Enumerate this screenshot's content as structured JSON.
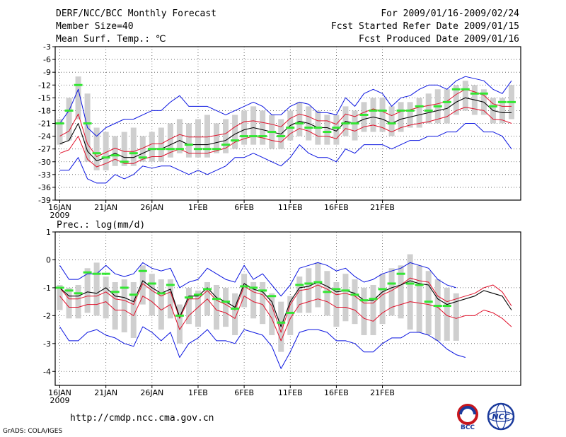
{
  "header": {
    "title": "DERF/NCC/BCC Monthly Forecast",
    "member_size": "Member Size=40",
    "variable": "Mean Surf. Temp.: ℃",
    "period": "For 2009/01/16-2009/02/24",
    "started": "Fcst Started Refer Date 2009/01/15",
    "produced": "Fcst Produced Date 2009/01/16"
  },
  "footer": {
    "url": "http://cmdp.ncc.cma.gov.cn",
    "grads": "GrADS: COLA/IGES",
    "logo_bcc": "BCC",
    "logo_ncc": "NCC"
  },
  "colors": {
    "mean": "#000000",
    "spread": "#e0102a",
    "extreme": "#0a14e0",
    "obs": "#33e633",
    "box": "#cfcfcf"
  },
  "chart_data": [
    {
      "type": "line",
      "title": "Mean Surf. Temp.: ℃",
      "x_ticks": [
        "16JAN",
        "21JAN",
        "26JAN",
        "1FEB",
        "6FEB",
        "11FEB",
        "16FEB",
        "21FEB"
      ],
      "x_sub": "2009",
      "ylim": [
        -39,
        -3
      ],
      "y_ticks": [
        -3,
        -6,
        -9,
        -12,
        -15,
        -18,
        -21,
        -24,
        -27,
        -30,
        -33,
        -36,
        -39
      ],
      "mean": [
        -25.8,
        -25,
        -21,
        -27.5,
        -29.8,
        -29,
        -28,
        -29,
        -29,
        -28,
        -27,
        -27,
        -26,
        -25,
        -26,
        -26,
        -26,
        -25.5,
        -25,
        -23.5,
        -22.5,
        -22,
        -22.5,
        -23,
        -23.5,
        -21.5,
        -20.5,
        -21,
        -22,
        -22,
        -22.8,
        -20.5,
        -21,
        -20,
        -19.5,
        -20,
        -21,
        -20,
        -19.5,
        -19,
        -18.5,
        -18,
        -17.5,
        -16,
        -15,
        -15.5,
        -16,
        -18,
        -18.5,
        -18.5
      ],
      "upper": [
        -24,
        -22.8,
        -18.8,
        -25.8,
        -28.8,
        -27.8,
        -26.8,
        -27.6,
        -27.6,
        -26.8,
        -25.8,
        -25.8,
        -24.6,
        -23.6,
        -24.2,
        -24.2,
        -24.2,
        -23.8,
        -23.4,
        -21.8,
        -20.6,
        -20.4,
        -20.8,
        -21.2,
        -21.8,
        -19.8,
        -18.8,
        -19.4,
        -20.4,
        -20.4,
        -21.2,
        -18.8,
        -19.4,
        -18.4,
        -17.6,
        -18.2,
        -19.2,
        -18.2,
        -17.8,
        -17.2,
        -16.8,
        -16.4,
        -15.8,
        -14.2,
        -13,
        -13.6,
        -14.4,
        -16.4,
        -17,
        -17
      ],
      "lower": [
        -28,
        -27.2,
        -24,
        -29.4,
        -31.2,
        -30.4,
        -29.4,
        -30.4,
        -30.4,
        -29.4,
        -28.8,
        -28.8,
        -27.8,
        -27,
        -28,
        -28,
        -28,
        -27.4,
        -26.8,
        -25.4,
        -24.6,
        -24,
        -24.4,
        -25,
        -25.4,
        -23.4,
        -22.2,
        -22.8,
        -24,
        -24,
        -24.6,
        -22.2,
        -22.8,
        -21.8,
        -21.4,
        -22,
        -23,
        -22,
        -21.4,
        -21,
        -20.6,
        -20,
        -19.4,
        -18,
        -17.2,
        -17.6,
        -18,
        -20,
        -20.2,
        -21
      ],
      "max": [
        -21,
        -18,
        -13,
        -22,
        -24,
        -22,
        -21,
        -20,
        -20,
        -19,
        -18,
        -18,
        -16,
        -14.5,
        -17,
        -17,
        -17,
        -18,
        -19,
        -18,
        -17,
        -16,
        -17,
        -19,
        -19,
        -17,
        -16,
        -16.5,
        -18.5,
        -18.5,
        -19,
        -15,
        -17,
        -14,
        -13,
        -14,
        -17,
        -15,
        -14.5,
        -13,
        -12,
        -12,
        -13,
        -11,
        -10,
        -10.5,
        -11,
        -13,
        -14,
        -11
      ],
      "min": [
        -32,
        -32,
        -29,
        -34,
        -35,
        -35,
        -33,
        -34,
        -33,
        -31,
        -31.5,
        -31,
        -31,
        -32,
        -33,
        -32,
        -33,
        -32,
        -31,
        -29,
        -29,
        -28,
        -29,
        -30,
        -31,
        -29,
        -26,
        -28,
        -29,
        -29,
        -30,
        -27,
        -28,
        -26,
        -26,
        -26,
        -27,
        -26,
        -25,
        -25,
        -24,
        -24,
        -23,
        -23,
        -21,
        -21,
        -23,
        -23,
        -24,
        -27
      ],
      "box_high": [
        -20,
        -15,
        -10,
        -14,
        -22,
        -23,
        -24,
        -23,
        -22,
        -24,
        -23,
        -22,
        -21,
        -20,
        -21,
        -20,
        -19,
        -21,
        -20,
        -19,
        -18,
        -17,
        -18,
        -19,
        -20,
        -18,
        -16,
        -17,
        -18,
        -19,
        -19,
        -17,
        -18,
        -16,
        -15,
        -15,
        -17,
        -16,
        -16,
        -15,
        -14,
        -13,
        -13,
        -12,
        -11,
        -12,
        -13,
        -15,
        -15,
        -12
      ],
      "box_low": [
        -26,
        -25,
        -20,
        -30,
        -32,
        -32,
        -31,
        -31,
        -31,
        -30,
        -30,
        -30,
        -29,
        -28,
        -29,
        -29,
        -29,
        -28,
        -28,
        -27,
        -26,
        -26,
        -26,
        -27,
        -27,
        -25,
        -24,
        -25,
        -26,
        -26,
        -26,
        -24,
        -25,
        -23,
        -23,
        -23,
        -24,
        -23,
        -22,
        -22,
        -21,
        -21,
        -21,
        -19,
        -18,
        -19,
        -19,
        -21,
        -21,
        -20
      ],
      "observed": [
        -21,
        -18,
        -12,
        -21,
        -28,
        -29,
        -28.5,
        -30,
        -28,
        -29,
        -27,
        -27,
        -27,
        -27,
        -26,
        -27,
        -27,
        -27,
        -26,
        -25,
        -24,
        -24,
        -24,
        -23,
        -24,
        -22,
        -21,
        -22,
        -22,
        -23,
        -22,
        -21,
        -21,
        -19,
        -18,
        -18,
        -21,
        -18,
        -18,
        -17,
        -18,
        -17,
        -16,
        -13,
        -13,
        -14,
        -14,
        -17,
        -16,
        -16
      ]
    },
    {
      "type": "line",
      "title": "Prec.: log(mm/d)",
      "x_ticks": [
        "16JAN",
        "21JAN",
        "26JAN",
        "1FEB",
        "6FEB",
        "11FEB",
        "16FEB",
        "21FEB"
      ],
      "x_sub": "2009",
      "ylim": [
        -4.5,
        1
      ],
      "y_ticks": [
        1,
        0,
        -1,
        -2,
        -3,
        -4
      ],
      "mean": [
        -1,
        -1.3,
        -1.3,
        -1.15,
        -1.2,
        -1,
        -1.3,
        -1.35,
        -1.5,
        -0.75,
        -1,
        -1.2,
        -1.05,
        -2.05,
        -1.3,
        -1.3,
        -1,
        -1.35,
        -1.5,
        -1.7,
        -0.85,
        -1.05,
        -1.15,
        -1.5,
        -2.4,
        -1.5,
        -1,
        -0.95,
        -0.8,
        -0.95,
        -1.15,
        -1.1,
        -1.2,
        -1.45,
        -1.45,
        -1.15,
        -1,
        -0.9,
        -0.75,
        -0.85,
        -0.9,
        -1.4,
        -1.6,
        -1.5,
        -1.4,
        -1.3,
        -1.1,
        -1.2,
        -1.3,
        -1.8
      ],
      "upper": [
        -1,
        -1.4,
        -1.4,
        -1.3,
        -1.3,
        -1.15,
        -1.4,
        -1.45,
        -1.6,
        -0.85,
        -1.1,
        -1.3,
        -1.15,
        -2.1,
        -1.4,
        -1.4,
        -1.1,
        -1.45,
        -1.6,
        -1.8,
        -0.95,
        -1.15,
        -1.25,
        -1.65,
        -2.6,
        -1.6,
        -1.1,
        -1.05,
        -0.9,
        -1.05,
        -1.25,
        -1.2,
        -1.3,
        -1.55,
        -1.55,
        -1.25,
        -1.1,
        -0.9,
        -0.65,
        -0.75,
        -0.8,
        -1.3,
        -1.5,
        -1.4,
        -1.3,
        -1.2,
        -1,
        -0.9,
        -1.15,
        -1.65
      ],
      "lower": [
        -1.3,
        -1.7,
        -1.7,
        -1.6,
        -1.6,
        -1.5,
        -1.8,
        -1.8,
        -2,
        -1.3,
        -1.5,
        -1.8,
        -1.6,
        -2.5,
        -2,
        -1.7,
        -1.4,
        -1.8,
        -1.9,
        -2.1,
        -1.3,
        -1.5,
        -1.6,
        -2.1,
        -2.9,
        -2.1,
        -1.6,
        -1.5,
        -1.4,
        -1.5,
        -1.7,
        -1.7,
        -1.8,
        -2.1,
        -2.2,
        -1.9,
        -1.7,
        -1.6,
        -1.5,
        -1.55,
        -1.6,
        -1.7,
        -2,
        -2.1,
        -2,
        -2,
        -1.8,
        -1.9,
        -2.1,
        -2.4
      ],
      "max": [
        -0.2,
        -0.7,
        -0.7,
        -0.5,
        -0.5,
        -0.2,
        -0.5,
        -0.6,
        -0.5,
        -0.1,
        -0.3,
        -0.4,
        -0.3,
        -1,
        -0.8,
        -0.7,
        -0.3,
        -0.5,
        -0.7,
        -0.8,
        -0.2,
        -0.7,
        -0.5,
        -0.9,
        -1.3,
        -0.9,
        -0.3,
        -0.2,
        -0.1,
        -0.2,
        -0.4,
        -0.3,
        -0.6,
        -0.8,
        -0.7,
        -0.5,
        -0.4,
        -0.3,
        -0.1,
        -0.2,
        -0.3,
        -0.7,
        -0.9,
        -1
      ],
      "min": [
        -2.4,
        -2.9,
        -2.9,
        -2.6,
        -2.5,
        -2.7,
        -2.8,
        -3,
        -3.1,
        -2.4,
        -2.6,
        -2.9,
        -2.6,
        -3.5,
        -3,
        -2.8,
        -2.5,
        -2.9,
        -2.9,
        -3,
        -2.5,
        -2.6,
        -2.7,
        -3.1,
        -3.9,
        -3.3,
        -2.6,
        -2.5,
        -2.5,
        -2.6,
        -2.9,
        -2.9,
        -3,
        -3.3,
        -3.3,
        -3,
        -2.8,
        -2.8,
        -2.6,
        -2.6,
        -2.7,
        -2.9,
        -3.2,
        -3.4,
        -3.5
      ],
      "box_high": [
        -0.9,
        -1,
        -0.9,
        -0.3,
        -0.1,
        -0.6,
        -0.8,
        -0.7,
        -0.8,
        -0.2,
        -0.5,
        -0.7,
        -0.7,
        -1.6,
        -1,
        -1.1,
        -0.8,
        -0.9,
        -1,
        -1.2,
        -0.5,
        -0.8,
        -0.8,
        -1.2,
        -1.5,
        -1.3,
        -0.6,
        -0.3,
        -0.1,
        -0.4,
        -0.8,
        -0.5,
        -0.7,
        -1,
        -0.9,
        -0.5,
        -0.3,
        -0.2,
        0.2,
        -0.2,
        -0.4,
        -0.7,
        -1,
        -1.2
      ],
      "box_low": [
        -1.8,
        -2.1,
        -2.1,
        -1.9,
        -2,
        -2.1,
        -2.5,
        -2.6,
        -2.8,
        -1.6,
        -2,
        -2.5,
        -2.1,
        -3,
        -2.3,
        -2.4,
        -2,
        -2.5,
        -2.4,
        -2.7,
        -1.7,
        -2.1,
        -2.3,
        -2.7,
        -3.3,
        -2.7,
        -1.9,
        -1.9,
        -1.7,
        -2,
        -2.4,
        -2.2,
        -2.3,
        -2.7,
        -2.7,
        -2.3,
        -2,
        -2.1,
        -2.5,
        -2.6,
        -2.7,
        -2.9,
        -2.9,
        -2.9
      ],
      "observed": [
        -1,
        -1.1,
        -1.2,
        -0.45,
        -0.5,
        -0.5,
        -1.15,
        -1,
        -1.25,
        -0.4,
        -0.85,
        -1.2,
        -0.9,
        -2,
        -1.35,
        -1.25,
        -1.05,
        -1.4,
        -1.5,
        -1.75,
        -0.95,
        -1,
        -1.1,
        -1.3,
        -2.25,
        -1.9,
        -0.9,
        -0.85,
        -0.8,
        -1.15,
        -1.05,
        -1.1,
        -1.25,
        -1.45,
        -1.4,
        -1.05,
        -0.85,
        -0.5,
        -0.85,
        -0.9,
        -1.5,
        -1.65,
        -1.65
      ]
    }
  ]
}
